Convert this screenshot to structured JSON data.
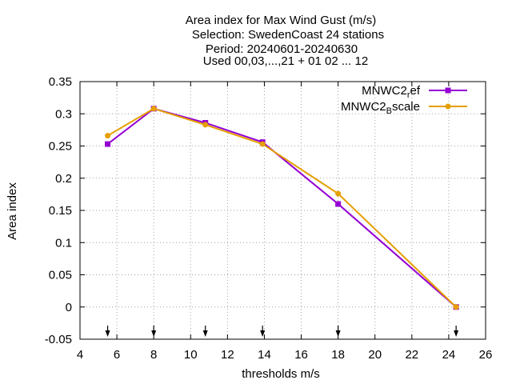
{
  "chart_data": {
    "type": "line",
    "title_lines": [
      "Area index  for Max Wind Gust (m/s)",
      "Selection: SwedenCoast     24 stations",
      "Period: 20240601-20240630",
      "Used 00,03,...,21 + 01 02 ... 12"
    ],
    "xlabel": "thresholds m/s",
    "ylabel": "Area index",
    "xlim": [
      4,
      26
    ],
    "ylim": [
      -0.05,
      0.35
    ],
    "xticks": [
      4,
      6,
      8,
      10,
      12,
      14,
      16,
      18,
      20,
      22,
      24,
      26
    ],
    "xtick_labels": [
      "4",
      "6",
      "8",
      "10",
      "12",
      "14",
      "16",
      "18",
      "20",
      "22",
      "24",
      "26"
    ],
    "yticks": [
      -0.05,
      0,
      0.05,
      0.1,
      0.15,
      0.2,
      0.25,
      0.3,
      0.35
    ],
    "ytick_labels": [
      "-0.05",
      "0",
      "0.05",
      "0.1",
      "0.15",
      "0.2",
      "0.25",
      "0.3",
      "0.35"
    ],
    "grid": true,
    "legend_position": "top-right",
    "threshold_arrows_x": [
      5.5,
      8,
      10.8,
      13.9,
      18,
      24.4
    ],
    "series": [
      {
        "name": "MNWC2_ref",
        "legend_main": "MNWC2",
        "legend_sub": "r",
        "legend_tail": "ef",
        "color": "#9400d3",
        "marker": "square",
        "x": [
          5.5,
          8,
          10.8,
          13.9,
          18,
          24.4
        ],
        "y": [
          0.253,
          0.308,
          0.286,
          0.256,
          0.16,
          0.0
        ]
      },
      {
        "name": "MNWC2_Bscale",
        "legend_main": "MNWC2",
        "legend_sub": "B",
        "legend_tail": "scale",
        "color": "#e69f00",
        "marker": "circle",
        "x": [
          5.5,
          8,
          10.8,
          13.9,
          18,
          24.4
        ],
        "y": [
          0.266,
          0.308,
          0.283,
          0.253,
          0.176,
          0.0
        ]
      }
    ]
  }
}
